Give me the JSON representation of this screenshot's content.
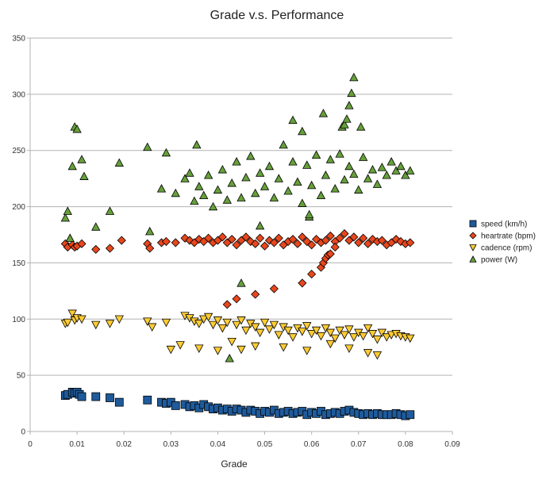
{
  "chart_data": {
    "type": "scatter",
    "title": "Grade v.s. Performance",
    "xlabel": "Grade",
    "ylabel": "",
    "xlim": [
      0,
      0.09
    ],
    "ylim": [
      0,
      350
    ],
    "xticks": [
      0,
      0.01,
      0.02,
      0.03,
      0.04,
      0.05,
      0.06,
      0.07,
      0.08,
      0.09
    ],
    "yticks": [
      0,
      50,
      100,
      150,
      200,
      250,
      300,
      350
    ],
    "grid": "horizontal",
    "legend_position": "right",
    "series": [
      {
        "name": "speed (km/h)",
        "marker": "square",
        "color": "#1f5b9b",
        "points": [
          [
            0.0075,
            32
          ],
          [
            0.008,
            33
          ],
          [
            0.009,
            35
          ],
          [
            0.0095,
            34
          ],
          [
            0.01,
            35
          ],
          [
            0.0105,
            33
          ],
          [
            0.011,
            31
          ],
          [
            0.014,
            31
          ],
          [
            0.017,
            30
          ],
          [
            0.019,
            26
          ],
          [
            0.025,
            28
          ],
          [
            0.028,
            26
          ],
          [
            0.029,
            25
          ],
          [
            0.03,
            26
          ],
          [
            0.031,
            23
          ],
          [
            0.033,
            24
          ],
          [
            0.034,
            22
          ],
          [
            0.035,
            23
          ],
          [
            0.036,
            21
          ],
          [
            0.037,
            24
          ],
          [
            0.038,
            22
          ],
          [
            0.039,
            20
          ],
          [
            0.04,
            21
          ],
          [
            0.041,
            19
          ],
          [
            0.042,
            20
          ],
          [
            0.043,
            18
          ],
          [
            0.044,
            20
          ],
          [
            0.045,
            19
          ],
          [
            0.046,
            17
          ],
          [
            0.047,
            19
          ],
          [
            0.048,
            18
          ],
          [
            0.049,
            16
          ],
          [
            0.05,
            18
          ],
          [
            0.051,
            17
          ],
          [
            0.052,
            19
          ],
          [
            0.053,
            16
          ],
          [
            0.054,
            17
          ],
          [
            0.055,
            18
          ],
          [
            0.056,
            16
          ],
          [
            0.057,
            17
          ],
          [
            0.058,
            18
          ],
          [
            0.059,
            15
          ],
          [
            0.06,
            17
          ],
          [
            0.061,
            16
          ],
          [
            0.062,
            18
          ],
          [
            0.063,
            15
          ],
          [
            0.064,
            16
          ],
          [
            0.065,
            17
          ],
          [
            0.066,
            16
          ],
          [
            0.067,
            18
          ],
          [
            0.068,
            19
          ],
          [
            0.069,
            17
          ],
          [
            0.07,
            16
          ],
          [
            0.071,
            15
          ],
          [
            0.072,
            16
          ],
          [
            0.073,
            15
          ],
          [
            0.074,
            16
          ],
          [
            0.075,
            15
          ],
          [
            0.076,
            15
          ],
          [
            0.077,
            15
          ],
          [
            0.078,
            16
          ],
          [
            0.079,
            15
          ],
          [
            0.08,
            14
          ],
          [
            0.081,
            15
          ]
        ]
      },
      {
        "name": "heartrate (bpm)",
        "marker": "diamond",
        "color": "#e8471d",
        "points": [
          [
            0.0075,
            167
          ],
          [
            0.008,
            164
          ],
          [
            0.009,
            166
          ],
          [
            0.0095,
            164
          ],
          [
            0.01,
            165
          ],
          [
            0.011,
            167
          ],
          [
            0.014,
            162
          ],
          [
            0.017,
            163
          ],
          [
            0.0195,
            170
          ],
          [
            0.025,
            167
          ],
          [
            0.0255,
            163
          ],
          [
            0.028,
            168
          ],
          [
            0.029,
            169
          ],
          [
            0.031,
            168
          ],
          [
            0.033,
            172
          ],
          [
            0.034,
            170
          ],
          [
            0.035,
            168
          ],
          [
            0.036,
            171
          ],
          [
            0.037,
            169
          ],
          [
            0.038,
            172
          ],
          [
            0.039,
            168
          ],
          [
            0.04,
            170
          ],
          [
            0.041,
            173
          ],
          [
            0.042,
            168
          ],
          [
            0.043,
            171
          ],
          [
            0.044,
            166
          ],
          [
            0.045,
            170
          ],
          [
            0.046,
            173
          ],
          [
            0.047,
            169
          ],
          [
            0.048,
            167
          ],
          [
            0.049,
            172
          ],
          [
            0.05,
            165
          ],
          [
            0.051,
            170
          ],
          [
            0.052,
            168
          ],
          [
            0.053,
            172
          ],
          [
            0.054,
            166
          ],
          [
            0.055,
            169
          ],
          [
            0.056,
            171
          ],
          [
            0.057,
            167
          ],
          [
            0.058,
            173
          ],
          [
            0.059,
            169
          ],
          [
            0.06,
            166
          ],
          [
            0.061,
            171
          ],
          [
            0.062,
            168
          ],
          [
            0.063,
            170
          ],
          [
            0.064,
            174
          ],
          [
            0.065,
            169
          ],
          [
            0.066,
            172
          ],
          [
            0.067,
            176
          ],
          [
            0.068,
            170
          ],
          [
            0.069,
            173
          ],
          [
            0.07,
            168
          ],
          [
            0.071,
            172
          ],
          [
            0.072,
            167
          ],
          [
            0.073,
            171
          ],
          [
            0.074,
            169
          ],
          [
            0.075,
            170
          ],
          [
            0.076,
            166
          ],
          [
            0.077,
            168
          ],
          [
            0.078,
            171
          ],
          [
            0.079,
            169
          ],
          [
            0.08,
            167
          ],
          [
            0.081,
            168
          ],
          [
            0.042,
            113
          ],
          [
            0.044,
            118
          ],
          [
            0.048,
            122
          ],
          [
            0.052,
            127
          ],
          [
            0.058,
            132
          ],
          [
            0.06,
            140
          ],
          [
            0.062,
            146
          ],
          [
            0.0625,
            150
          ],
          [
            0.063,
            154
          ],
          [
            0.0635,
            157
          ],
          [
            0.064,
            158
          ],
          [
            0.065,
            164
          ]
        ]
      },
      {
        "name": "cadence (rpm)",
        "marker": "triangle-down",
        "color": "#ffcc33",
        "points": [
          [
            0.0075,
            96
          ],
          [
            0.008,
            97
          ],
          [
            0.009,
            105
          ],
          [
            0.0095,
            99
          ],
          [
            0.01,
            101
          ],
          [
            0.011,
            100
          ],
          [
            0.014,
            95
          ],
          [
            0.017,
            96
          ],
          [
            0.019,
            100
          ],
          [
            0.025,
            98
          ],
          [
            0.026,
            93
          ],
          [
            0.029,
            97
          ],
          [
            0.03,
            73
          ],
          [
            0.032,
            77
          ],
          [
            0.033,
            103
          ],
          [
            0.034,
            101
          ],
          [
            0.035,
            98
          ],
          [
            0.036,
            96
          ],
          [
            0.037,
            100
          ],
          [
            0.038,
            102
          ],
          [
            0.039,
            95
          ],
          [
            0.04,
            99
          ],
          [
            0.041,
            92
          ],
          [
            0.042,
            97
          ],
          [
            0.043,
            80
          ],
          [
            0.044,
            95
          ],
          [
            0.045,
            99
          ],
          [
            0.046,
            90
          ],
          [
            0.047,
            96
          ],
          [
            0.048,
            93
          ],
          [
            0.049,
            88
          ],
          [
            0.05,
            97
          ],
          [
            0.051,
            91
          ],
          [
            0.052,
            95
          ],
          [
            0.053,
            86
          ],
          [
            0.054,
            93
          ],
          [
            0.055,
            90
          ],
          [
            0.056,
            84
          ],
          [
            0.057,
            92
          ],
          [
            0.058,
            89
          ],
          [
            0.059,
            94
          ],
          [
            0.06,
            87
          ],
          [
            0.061,
            90
          ],
          [
            0.062,
            85
          ],
          [
            0.063,
            92
          ],
          [
            0.064,
            88
          ],
          [
            0.065,
            83
          ],
          [
            0.066,
            90
          ],
          [
            0.067,
            86
          ],
          [
            0.068,
            91
          ],
          [
            0.069,
            84
          ],
          [
            0.07,
            88
          ],
          [
            0.071,
            85
          ],
          [
            0.072,
            92
          ],
          [
            0.073,
            87
          ],
          [
            0.074,
            82
          ],
          [
            0.075,
            88
          ],
          [
            0.076,
            84
          ],
          [
            0.077,
            86
          ],
          [
            0.078,
            87
          ],
          [
            0.079,
            85
          ],
          [
            0.08,
            84
          ],
          [
            0.081,
            83
          ],
          [
            0.036,
            74
          ],
          [
            0.04,
            72
          ],
          [
            0.045,
            73
          ],
          [
            0.048,
            76
          ],
          [
            0.054,
            75
          ],
          [
            0.059,
            72
          ],
          [
            0.064,
            78
          ],
          [
            0.068,
            74
          ],
          [
            0.072,
            70
          ],
          [
            0.074,
            68
          ]
        ]
      },
      {
        "name": "power (W)",
        "marker": "triangle-up",
        "color": "#66a03a",
        "points": [
          [
            0.0075,
            190
          ],
          [
            0.008,
            196
          ],
          [
            0.0085,
            172
          ],
          [
            0.009,
            236
          ],
          [
            0.0095,
            271
          ],
          [
            0.01,
            269
          ],
          [
            0.011,
            242
          ],
          [
            0.0115,
            227
          ],
          [
            0.014,
            182
          ],
          [
            0.017,
            196
          ],
          [
            0.019,
            239
          ],
          [
            0.025,
            253
          ],
          [
            0.0255,
            178
          ],
          [
            0.028,
            216
          ],
          [
            0.029,
            248
          ],
          [
            0.031,
            212
          ],
          [
            0.033,
            225
          ],
          [
            0.034,
            230
          ],
          [
            0.035,
            205
          ],
          [
            0.0355,
            255
          ],
          [
            0.036,
            218
          ],
          [
            0.037,
            210
          ],
          [
            0.038,
            228
          ],
          [
            0.039,
            200
          ],
          [
            0.04,
            215
          ],
          [
            0.041,
            233
          ],
          [
            0.042,
            206
          ],
          [
            0.043,
            221
          ],
          [
            0.044,
            240
          ],
          [
            0.045,
            208
          ],
          [
            0.046,
            226
          ],
          [
            0.047,
            245
          ],
          [
            0.048,
            212
          ],
          [
            0.049,
            230
          ],
          [
            0.05,
            218
          ],
          [
            0.051,
            236
          ],
          [
            0.052,
            208
          ],
          [
            0.053,
            225
          ],
          [
            0.054,
            255
          ],
          [
            0.055,
            214
          ],
          [
            0.056,
            240
          ],
          [
            0.057,
            222
          ],
          [
            0.058,
            203
          ],
          [
            0.059,
            237
          ],
          [
            0.06,
            219
          ],
          [
            0.061,
            246
          ],
          [
            0.062,
            210
          ],
          [
            0.063,
            228
          ],
          [
            0.064,
            242
          ],
          [
            0.065,
            216
          ],
          [
            0.066,
            247
          ],
          [
            0.067,
            224
          ],
          [
            0.068,
            236
          ],
          [
            0.069,
            229
          ],
          [
            0.07,
            215
          ],
          [
            0.071,
            244
          ],
          [
            0.072,
            225
          ],
          [
            0.073,
            233
          ],
          [
            0.074,
            220
          ],
          [
            0.075,
            235
          ],
          [
            0.076,
            228
          ],
          [
            0.077,
            240
          ],
          [
            0.078,
            232
          ],
          [
            0.079,
            236
          ],
          [
            0.08,
            228
          ],
          [
            0.081,
            232
          ],
          [
            0.0425,
            65
          ],
          [
            0.045,
            132
          ],
          [
            0.049,
            183
          ],
          [
            0.056,
            277
          ],
          [
            0.058,
            267
          ],
          [
            0.0595,
            191
          ],
          [
            0.0595,
            193
          ],
          [
            0.0625,
            283
          ],
          [
            0.0665,
            271
          ],
          [
            0.067,
            273
          ],
          [
            0.0675,
            278
          ],
          [
            0.068,
            290
          ],
          [
            0.0685,
            301
          ],
          [
            0.069,
            315
          ],
          [
            0.0705,
            271
          ]
        ]
      }
    ]
  }
}
